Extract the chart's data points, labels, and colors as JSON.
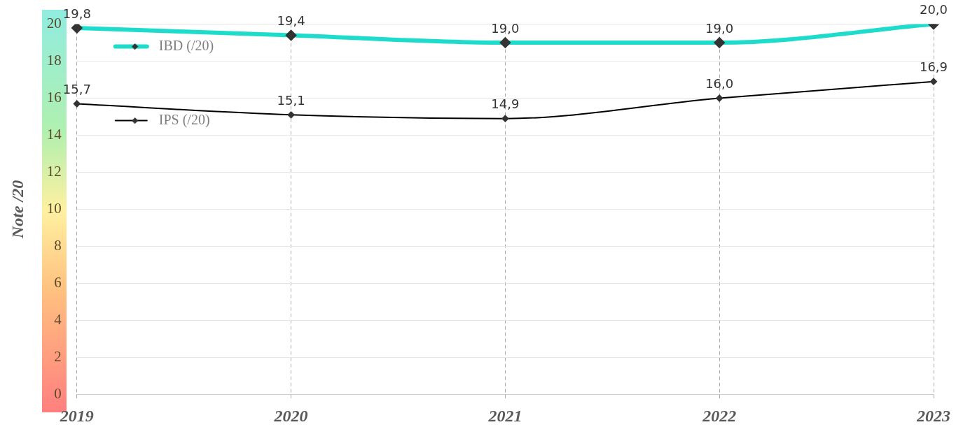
{
  "chart_data": {
    "type": "line",
    "ylabel": "Note /20",
    "categories": [
      "2019",
      "2020",
      "2021",
      "2022",
      "2023"
    ],
    "series": [
      {
        "name": "IBD (/20)",
        "color": "#1ddccb",
        "values": [
          19.8,
          19.4,
          19.0,
          19.0,
          20.0
        ],
        "value_labels": [
          "19,8",
          "19,4",
          "19,0",
          "19,0",
          "20,0"
        ]
      },
      {
        "name": "IPS (/20)",
        "color": "#000000",
        "values": [
          15.7,
          15.1,
          14.9,
          16.0,
          16.9
        ],
        "value_labels": [
          "15,7",
          "15,1",
          "14,9",
          "16,0",
          "16,9"
        ]
      }
    ],
    "ylim": [
      0,
      20
    ],
    "yticks": [
      0,
      2,
      4,
      6,
      8,
      10,
      12,
      14,
      16,
      18,
      20
    ],
    "grid": true,
    "legend": "top left",
    "marker": "diamond",
    "line_style": "solid"
  }
}
